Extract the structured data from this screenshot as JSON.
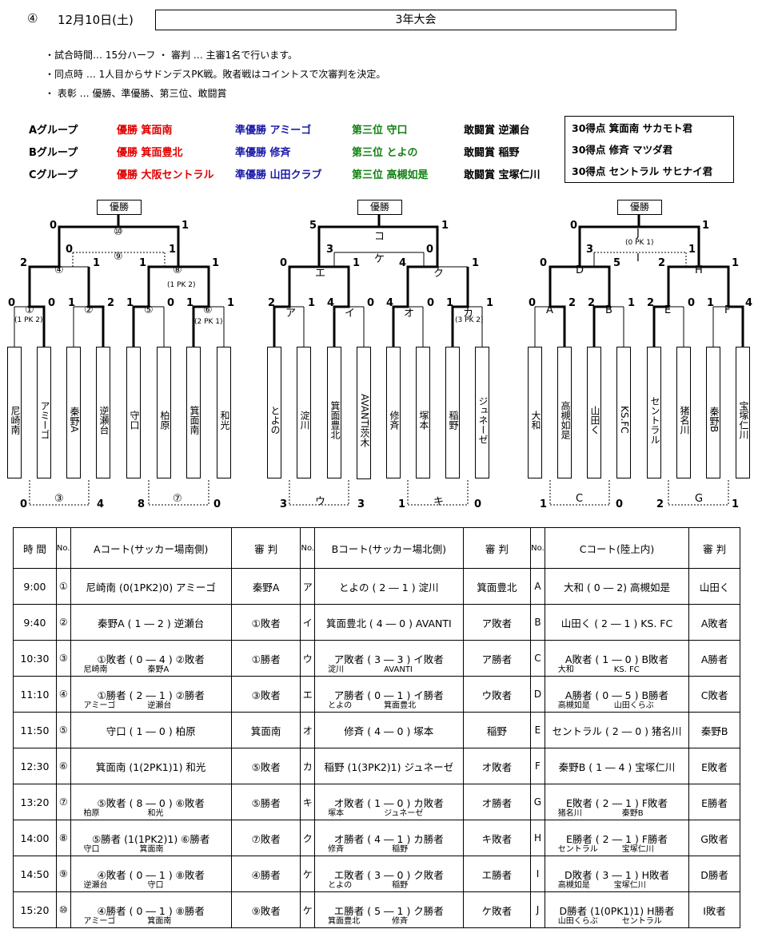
{
  "header": {
    "num": "④",
    "date": "12月10日(土)",
    "title": "3年大会"
  },
  "notes": [
    "・試合時間… 15分ハーフ ・ 審判 … 主審1名で行います。",
    "・同点時 … 1人目からサドンデスPK戦。敗者戦はコイントスで次審判を決定。",
    "・ 表彰 … 優勝、準優勝、第三位、敢闘賞"
  ],
  "groups": [
    {
      "name": "Aグループ",
      "champion": "優勝 箕面南",
      "runner": "準優勝 アミーゴ",
      "third": "第三位 守口",
      "fighting": "敢闘賞 逆瀬台"
    },
    {
      "name": "Bグループ",
      "champion": "優勝 箕面豊北",
      "runner": "準優勝 修斉",
      "third": "第三位 とよの",
      "fighting": "敢闘賞 稲野"
    },
    {
      "name": "Cグループ",
      "champion": "優勝 大阪セントラル",
      "runner": "準優勝 山田クラブ",
      "third": "第三位 高槻如是",
      "fighting": "敢闘賞 宝塚仁川"
    }
  ],
  "scorers": [
    "30得点 箕面南 サカモト君",
    "30得点 修斉 マツダ君",
    "30得点 セントラル サヒナイ君"
  ],
  "bracket": {
    "win_label": "優勝",
    "teamsA": [
      "尼崎南",
      "アミーゴ",
      "秦野A",
      "逆瀬台",
      "守口",
      "柏原",
      "箕面南",
      "和光"
    ],
    "teamsB": [
      "とよの",
      "淀川",
      "箕面豊北",
      "AVANTI茨木",
      "修斉",
      "塚本",
      "稲野",
      "ジュネーゼ"
    ],
    "teamsC": [
      "大和",
      "高槻如是",
      "山田く",
      "KS.FC",
      "セントラル",
      "猪名川",
      "秦野B",
      "宝塚仁川"
    ]
  },
  "schedule": {
    "headers": {
      "time": "時 間",
      "no": "No.",
      "courtA": "Aコート(サッカー場南側)",
      "ref": "審 判",
      "courtB": "Bコート(サッカー場北側)",
      "courtC": "Cコート(陸上内)"
    },
    "rows": [
      {
        "time": "9:00",
        "a_no": "①",
        "a_match": "尼崎南 (0(1PK2)0) アミーゴ",
        "a_sub": "",
        "a_ref": "秦野A",
        "b_no": "ア",
        "b_match": "とよの ( 2 ― 1 ) 淀川",
        "b_sub": "",
        "b_ref": "箕面豊北",
        "c_no": "A",
        "c_match": "大和 ( 0 ― 2) 高槻如是",
        "c_sub": "",
        "c_ref": "山田く"
      },
      {
        "time": "9:40",
        "a_no": "②",
        "a_match": "秦野A ( 1 ― 2 ) 逆瀬台",
        "a_sub": "",
        "a_ref": "①敗者",
        "b_no": "イ",
        "b_match": "箕面豊北 ( 4 ― 0 ) AVANTI",
        "b_sub": "",
        "b_ref": "ア敗者",
        "c_no": "B",
        "c_match": "山田く ( 2 ― 1 ) KS. FC",
        "c_sub": "",
        "c_ref": "A敗者"
      },
      {
        "time": "10:30",
        "a_no": "③",
        "a_match": "①敗者 ( 0 ― 4 ) ②敗者",
        "a_sub": "尼崎南　　　　　秦野A",
        "a_ref": "①勝者",
        "b_no": "ウ",
        "b_match": "ア敗者 ( 3 ― 3 ) イ敗者",
        "b_sub": "淀川　　　　　AVANTI",
        "b_ref": "ア勝者",
        "c_no": "C",
        "c_match": "A敗者 ( 1 ― 0 ) B敗者",
        "c_sub": "大和　　　　　KS. FC",
        "c_ref": "A勝者"
      },
      {
        "time": "11:10",
        "a_no": "④",
        "a_match": "①勝者 ( 2 ― 1 ) ②勝者",
        "a_sub": "アミーゴ　　　　逆瀬台",
        "a_ref": "③敗者",
        "b_no": "エ",
        "b_match": "ア勝者 ( 0 ― 1 ) イ勝者",
        "b_sub": "とよの　　　　箕面豊北",
        "b_ref": "ウ敗者",
        "c_no": "D",
        "c_match": "A勝者 ( 0 ― 5 ) B勝者",
        "c_sub": "高槻如是　　　山田くらぶ",
        "c_ref": "C敗者"
      },
      {
        "time": "11:50",
        "a_no": "⑤",
        "a_match": "守口 ( 1 ― 0 ) 柏原",
        "a_sub": "",
        "a_ref": "箕面南",
        "b_no": "オ",
        "b_match": "修斉 ( 4 ― 0 ) 塚本",
        "b_sub": "",
        "b_ref": "稲野",
        "c_no": "E",
        "c_match": "セントラル ( 2 ― 0 ) 猪名川",
        "c_sub": "",
        "c_ref": "秦野B"
      },
      {
        "time": "12:30",
        "a_no": "⑥",
        "a_match": "箕面南 (1(2PK1)1) 和光",
        "a_sub": "",
        "a_ref": "⑤敗者",
        "b_no": "カ",
        "b_match": "稲野 (1(3PK2)1) ジュネーゼ",
        "b_sub": "",
        "b_ref": "オ敗者",
        "c_no": "F",
        "c_match": "秦野B ( 1 ― 4 ) 宝塚仁川",
        "c_sub": "",
        "c_ref": "E敗者"
      },
      {
        "time": "13:20",
        "a_no": "⑦",
        "a_match": "⑤敗者 ( 8 ― 0 ) ⑥敗者",
        "a_sub": "柏原　　　　　　和光",
        "a_ref": "⑤勝者",
        "b_no": "キ",
        "b_match": "オ敗者 ( 1 ― 0 ) カ敗者",
        "b_sub": "塚本　　　　　ジュネーゼ",
        "b_ref": "オ勝者",
        "c_no": "G",
        "c_match": "E敗者 ( 2 ― 1 ) F敗者",
        "c_sub": "猪名川　　　　　秦野B",
        "c_ref": "E勝者"
      },
      {
        "time": "14:00",
        "a_no": "⑧",
        "a_match": "⑤勝者 (1(1PK2)1) ⑥勝者",
        "a_sub": "守口　　　　　箕面南",
        "a_ref": "⑦敗者",
        "b_no": "ク",
        "b_match": "オ勝者 ( 4 ― 1 ) カ勝者",
        "b_sub": "修斉　　　　　　稲野",
        "b_ref": "キ敗者",
        "c_no": "H",
        "c_match": "E勝者 ( 2 ― 1 ) F勝者",
        "c_sub": "セントラル　　　宝塚仁川",
        "c_ref": "G敗者"
      },
      {
        "time": "14:50",
        "a_no": "⑨",
        "a_match": "④敗者 ( 0 ― 1 ) ⑧敗者",
        "a_sub": "逆瀬台　　　　　守口",
        "a_ref": "④勝者",
        "b_no": "ケ",
        "b_match": "エ敗者 ( 3 ― 0 ) ク敗者",
        "b_sub": "とよの　　　　　稲野",
        "b_ref": "エ勝者",
        "c_no": "I",
        "c_match": "D敗者 ( 3 ― 1 ) H敗者",
        "c_sub": "高槻如是　　　宝塚仁川",
        "c_ref": "D勝者"
      },
      {
        "time": "15:20",
        "a_no": "⑩",
        "a_match": "④勝者 ( 0 ― 1 ) ⑧勝者",
        "a_sub": "アミーゴ　　　　箕面南",
        "a_ref": "⑨敗者",
        "b_no": "ケ",
        "b_match": "エ勝者 ( 5 ― 1 ) ク勝者",
        "b_sub": "箕面豊北　　　　修斉",
        "b_ref": "ケ敗者",
        "c_no": "J",
        "c_match": "D勝者 (1(0PK1)1) H勝者",
        "c_sub": "山田くらぶ　　　セントラル",
        "c_ref": "I敗者"
      }
    ]
  }
}
